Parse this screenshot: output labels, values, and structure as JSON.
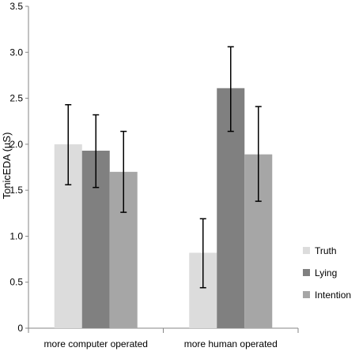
{
  "chart_data": {
    "type": "bar",
    "title": "",
    "xlabel": "",
    "ylabel": "TonicEDA  (µS)",
    "ylim": [
      0,
      3.5
    ],
    "yticks": [
      "0",
      "0.5",
      "1.0",
      "1.5",
      "2.0",
      "2.5",
      "3.0",
      "3.5"
    ],
    "ytick_values": [
      0,
      0.5,
      1.0,
      1.5,
      2.0,
      2.5,
      3.0,
      3.5
    ],
    "categories": [
      "more computer operated",
      "more human operated"
    ],
    "series": [
      {
        "name": "Truth",
        "color": "#dcdcdc",
        "values": [
          2.0,
          0.82
        ],
        "err_low": [
          1.56,
          0.44
        ],
        "err_high": [
          2.43,
          1.19
        ]
      },
      {
        "name": "Lying",
        "color": "#808080",
        "values": [
          1.93,
          2.61
        ],
        "err_low": [
          1.53,
          2.14
        ],
        "err_high": [
          2.32,
          3.06
        ]
      },
      {
        "name": "Intention",
        "color": "#a6a6a6",
        "values": [
          1.7,
          1.89
        ],
        "err_low": [
          1.26,
          1.38
        ],
        "err_high": [
          2.14,
          2.41
        ]
      }
    ],
    "grid": false,
    "legend_position": "bottom-right",
    "error_bars": true
  }
}
